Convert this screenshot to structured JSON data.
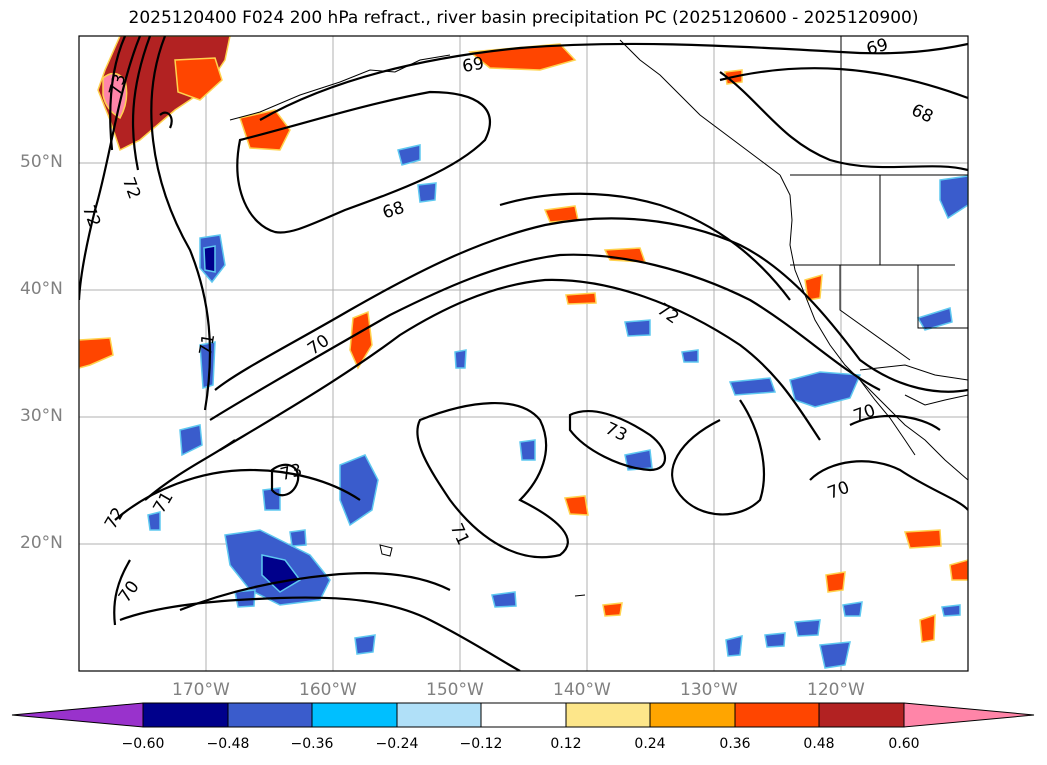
{
  "title": "2025120400 F024 200 hPa refract., river basin precipitation PC (2025120600 - 2025120900)",
  "lat_labels": [
    "50°N",
    "40°N",
    "30°N",
    "20°N"
  ],
  "lon_labels": [
    "170°W",
    "160°W",
    "150°W",
    "140°W",
    "130°W",
    "120°W"
  ],
  "contour_labels": [
    "73",
    "72",
    "72",
    "71",
    "70",
    "68",
    "69",
    "69",
    "68",
    "72",
    "70",
    "70",
    "73",
    "71",
    "73",
    "72",
    "71",
    "70"
  ],
  "colorbar": {
    "tick_labels": [
      "−0.60",
      "−0.48",
      "−0.36",
      "−0.24",
      "−0.12",
      "0.12",
      "0.24",
      "0.36",
      "0.48",
      "0.60"
    ],
    "colors": [
      "#9932cc",
      "#00008b",
      "#3a5ccc",
      "#00bfff",
      "#b0e0f8",
      "#ffffff",
      "#fde68a",
      "#ffa500",
      "#ff4500",
      "#b22222",
      "#ff85a8"
    ]
  }
}
